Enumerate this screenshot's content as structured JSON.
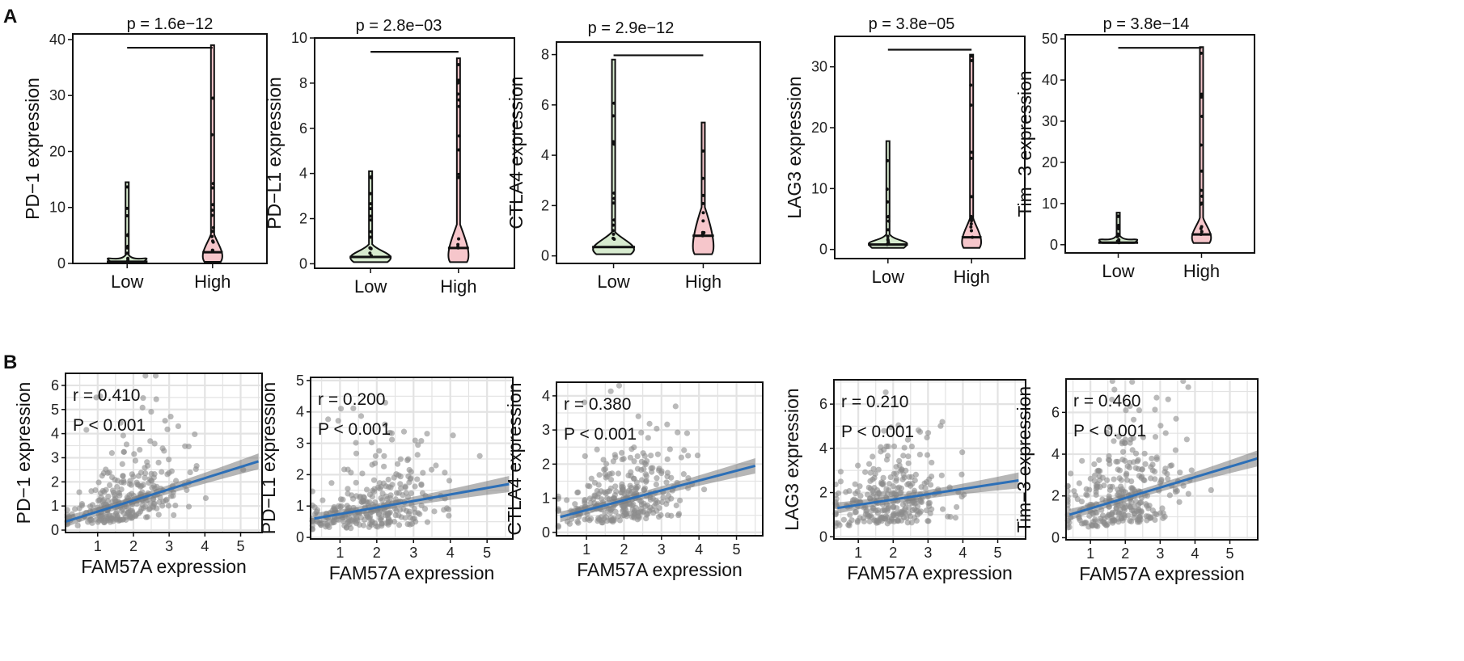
{
  "panel_labels": {
    "a": "A",
    "b": "B"
  },
  "chart_data": [
    {
      "id": "A1",
      "type": "violin",
      "title": "p = 1.6e−12",
      "ylabel": "PD−1 expression",
      "categories": [
        "Low",
        "High"
      ],
      "ylim": [
        0,
        41
      ],
      "yticks": [
        0,
        10,
        20,
        30,
        40
      ],
      "medians": [
        0.3,
        2.0
      ],
      "maxima": [
        14.5,
        39.0
      ],
      "colors": [
        "#d7ebcf",
        "#f6c6cb"
      ]
    },
    {
      "id": "A2",
      "type": "violin",
      "title": "p = 2.8e−03",
      "ylabel": "PD−L1 expression",
      "categories": [
        "Low",
        "High"
      ],
      "ylim": [
        -0.2,
        10
      ],
      "yticks": [
        0,
        2,
        4,
        6,
        8,
        10
      ],
      "medians": [
        0.3,
        0.7
      ],
      "maxima": [
        4.1,
        9.1
      ],
      "colors": [
        "#d7ebcf",
        "#f6c6cb"
      ]
    },
    {
      "id": "A3",
      "type": "violin",
      "title": "p = 2.9e−12",
      "ylabel": "CTLA4 expression",
      "categories": [
        "Low",
        "High"
      ],
      "ylim": [
        -0.3,
        8.5
      ],
      "yticks": [
        0,
        2,
        4,
        6,
        8
      ],
      "medians": [
        0.35,
        0.8
      ],
      "maxima": [
        7.8,
        5.3
      ],
      "colors": [
        "#d7ebcf",
        "#f6c6cb"
      ]
    },
    {
      "id": "A4",
      "type": "violin",
      "title": "p = 3.8e−05",
      "ylabel": "LAG3 expression",
      "categories": [
        "Low",
        "High"
      ],
      "ylim": [
        -1.5,
        35
      ],
      "yticks": [
        0,
        10,
        20,
        30
      ],
      "medians": [
        0.8,
        2.0
      ],
      "maxima": [
        17.8,
        32.0
      ],
      "colors": [
        "#d7ebcf",
        "#f6c6cb"
      ]
    },
    {
      "id": "A5",
      "type": "violin",
      "title": "p = 3.8e−14",
      "ylabel": "Tim−3 expression",
      "categories": [
        "Low",
        "High"
      ],
      "ylim": [
        -2,
        51
      ],
      "yticks": [
        0,
        10,
        20,
        30,
        40,
        50
      ],
      "medians": [
        0.5,
        2.5
      ],
      "maxima": [
        7.8,
        48.0
      ],
      "colors": [
        "#d7ebcf",
        "#f6c6cb"
      ]
    },
    {
      "id": "B1",
      "type": "scatter",
      "xlabel": "FAM57A expression",
      "ylabel": "PD−1 expression",
      "r_text": "r = 0.410",
      "p_text": "P < 0.001",
      "xlim": [
        0.1,
        5.6
      ],
      "ylim": [
        -0.1,
        6.5
      ],
      "xticks": [
        1,
        2,
        3,
        4,
        5
      ],
      "yticks": [
        0,
        1,
        2,
        3,
        4,
        5,
        6
      ],
      "fit": {
        "x0": 0.1,
        "y0": 0.35,
        "x1": 5.5,
        "y1": 2.85
      },
      "n_points": 300,
      "seed": 11
    },
    {
      "id": "B2",
      "type": "scatter",
      "xlabel": "FAM57A expression",
      "ylabel": "PD−L1 expression",
      "r_text": "r = 0.200",
      "p_text": "P < 0.001",
      "xlim": [
        0.2,
        5.7
      ],
      "ylim": [
        -0.05,
        5.1
      ],
      "xticks": [
        1,
        2,
        3,
        4,
        5
      ],
      "yticks": [
        0,
        1,
        2,
        3,
        4,
        5
      ],
      "fit": {
        "x0": 0.3,
        "y0": 0.6,
        "x1": 5.6,
        "y1": 1.7
      },
      "n_points": 300,
      "seed": 23
    },
    {
      "id": "B3",
      "type": "scatter",
      "xlabel": "FAM57A expression",
      "ylabel": "CTLA4 expression",
      "r_text": "r = 0.380",
      "p_text": "P < 0.001",
      "xlim": [
        0.2,
        5.7
      ],
      "ylim": [
        -0.1,
        4.4
      ],
      "xticks": [
        1,
        2,
        3,
        4,
        5
      ],
      "yticks": [
        0,
        1,
        2,
        3,
        4
      ],
      "fit": {
        "x0": 0.3,
        "y0": 0.45,
        "x1": 5.5,
        "y1": 1.95
      },
      "n_points": 320,
      "seed": 37
    },
    {
      "id": "B4",
      "type": "scatter",
      "xlabel": "FAM57A expression",
      "ylabel": "LAG3 expression",
      "r_text": "r = 0.210",
      "p_text": "P < 0.001",
      "xlim": [
        0.3,
        5.8
      ],
      "ylim": [
        -0.1,
        7.1
      ],
      "xticks": [
        1,
        2,
        3,
        4,
        5
      ],
      "yticks": [
        0,
        2,
        4,
        6
      ],
      "fit": {
        "x0": 0.4,
        "y0": 1.3,
        "x1": 5.6,
        "y1": 2.55
      },
      "n_points": 300,
      "seed": 53
    },
    {
      "id": "B5",
      "type": "scatter",
      "xlabel": "FAM57A expression",
      "ylabel": "Tim−3 expression",
      "r_text": "r = 0.460",
      "p_text": "P < 0.001",
      "xlim": [
        0.3,
        5.8
      ],
      "ylim": [
        -0.1,
        7.6
      ],
      "xticks": [
        1,
        2,
        3,
        4,
        5
      ],
      "yticks": [
        0,
        2,
        4,
        6
      ],
      "fit": {
        "x0": 0.4,
        "y0": 1.1,
        "x1": 5.8,
        "y1": 3.8
      },
      "n_points": 320,
      "seed": 71
    }
  ]
}
